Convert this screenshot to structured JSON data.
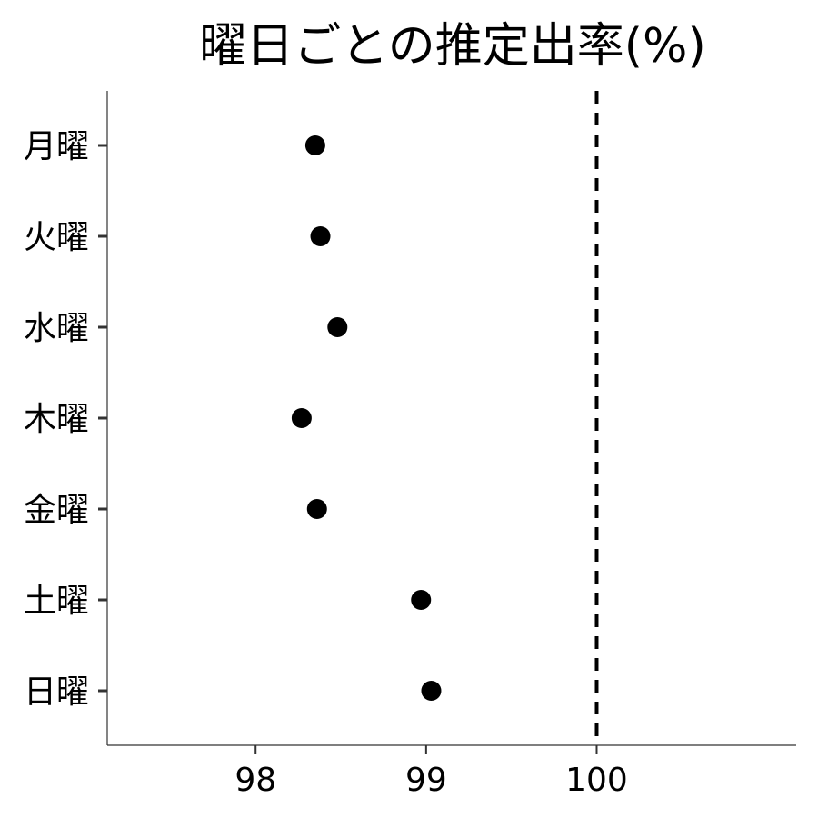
{
  "chart_data": {
    "type": "scatter",
    "title": "曜日ごとの推定出率(%)",
    "xlabel": "",
    "ylabel": "",
    "categories": [
      "月曜",
      "火曜",
      "水曜",
      "木曜",
      "金曜",
      "土曜",
      "日曜"
    ],
    "values": [
      98.35,
      98.38,
      98.48,
      98.27,
      98.36,
      98.97,
      99.03
    ],
    "x_ticks": [
      98,
      99,
      100
    ],
    "xlim": [
      97.13,
      101.17
    ],
    "reference_line": {
      "x": 100,
      "style": "dashed"
    },
    "grid": false,
    "point_color": "#000000"
  }
}
